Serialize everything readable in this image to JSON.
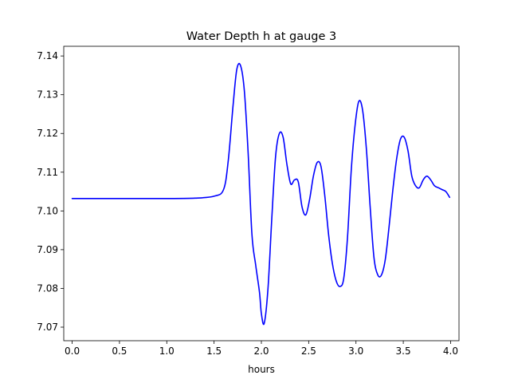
{
  "chart_data": {
    "type": "line",
    "title": "Water Depth h at gauge 3",
    "xlabel": "hours",
    "ylabel": "",
    "xlim": [
      -0.0889,
      4.0889
    ],
    "ylim": [
      7.0665,
      7.1425
    ],
    "grid": false,
    "line_color": "#0000ff",
    "x_ticks": [
      0.0,
      0.5,
      1.0,
      1.5,
      2.0,
      2.5,
      3.0,
      3.5,
      4.0
    ],
    "x_tick_labels": [
      "0.0",
      "0.5",
      "1.0",
      "1.5",
      "2.0",
      "2.5",
      "3.0",
      "3.5",
      "4.0"
    ],
    "y_ticks": [
      7.07,
      7.08,
      7.09,
      7.1,
      7.11,
      7.12,
      7.13,
      7.14
    ],
    "y_tick_labels": [
      "7.07",
      "7.08",
      "7.09",
      "7.10",
      "7.11",
      "7.12",
      "7.13",
      "7.14"
    ],
    "series": [
      {
        "x": [
          0.0,
          0.5,
          1.0,
          1.3,
          1.5,
          1.6,
          1.65,
          1.7,
          1.74,
          1.78,
          1.82,
          1.86,
          1.9,
          1.94,
          1.98,
          2.0,
          2.03,
          2.07,
          2.11,
          2.15,
          2.19,
          2.23,
          2.27,
          2.31,
          2.35,
          2.39,
          2.43,
          2.47,
          2.51,
          2.55,
          2.59,
          2.63,
          2.67,
          2.71,
          2.75,
          2.79,
          2.83,
          2.87,
          2.91,
          2.95,
          2.99,
          3.03,
          3.07,
          3.11,
          3.15,
          3.19,
          3.23,
          3.27,
          3.31,
          3.35,
          3.39,
          3.43,
          3.47,
          3.51,
          3.55,
          3.59,
          3.63,
          3.67,
          3.71,
          3.75,
          3.79,
          3.83,
          3.87,
          3.91,
          3.95,
          3.99
        ],
        "y": [
          7.1032,
          7.1032,
          7.1032,
          7.1033,
          7.1038,
          7.1055,
          7.113,
          7.127,
          7.1365,
          7.1375,
          7.131,
          7.115,
          7.094,
          7.086,
          7.079,
          7.0735,
          7.071,
          7.08,
          7.098,
          7.114,
          7.12,
          7.119,
          7.112,
          7.107,
          7.108,
          7.1075,
          7.101,
          7.099,
          7.103,
          7.109,
          7.1125,
          7.1115,
          7.104,
          7.094,
          7.0865,
          7.082,
          7.0805,
          7.0825,
          7.093,
          7.1105,
          7.122,
          7.1283,
          7.126,
          7.116,
          7.101,
          7.088,
          7.0835,
          7.0835,
          7.0875,
          7.096,
          7.1055,
          7.1135,
          7.1185,
          7.119,
          7.1155,
          7.109,
          7.1065,
          7.106,
          7.108,
          7.109,
          7.108,
          7.1065,
          7.106,
          7.1055,
          7.105,
          7.1035
        ]
      }
    ]
  }
}
